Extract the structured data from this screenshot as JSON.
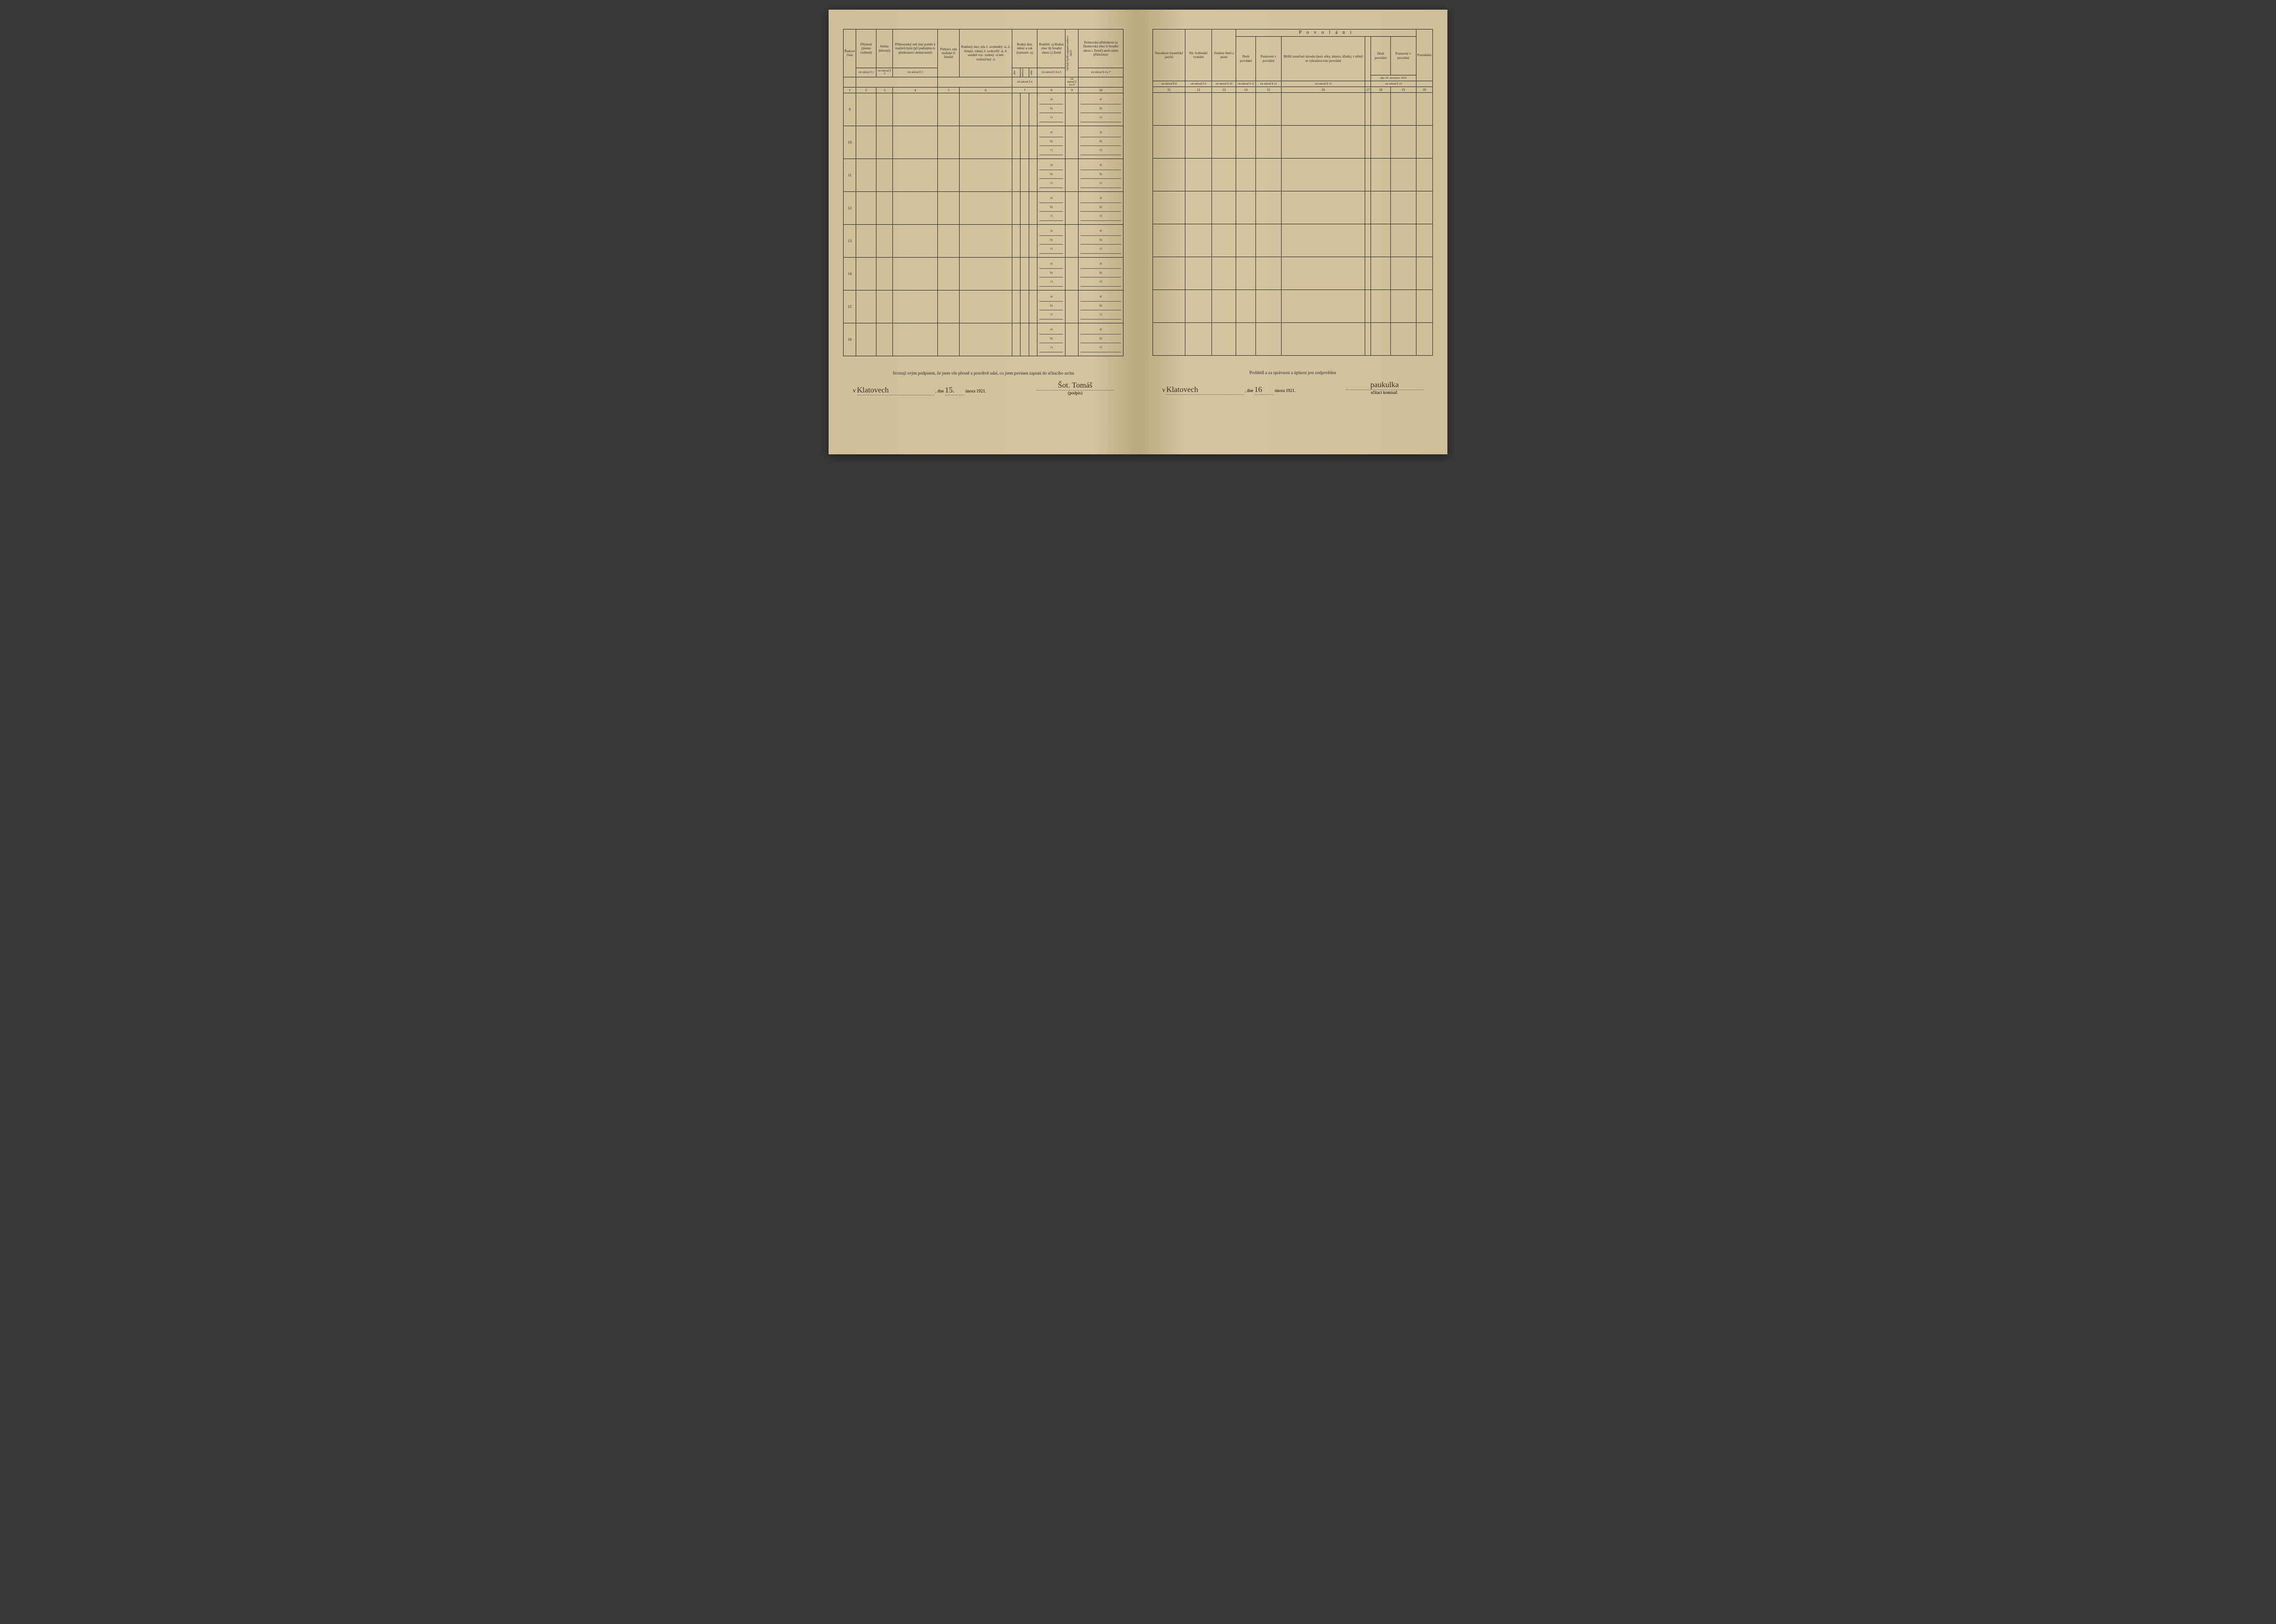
{
  "columns_left": {
    "c1": {
      "header": "Řadové\nčíslo",
      "ref": "",
      "num": "1"
    },
    "c2": {
      "header": "Příjmení\n(jméno rodinné)",
      "ref": "viz návod § 1",
      "num": "2"
    },
    "c3": {
      "header": "Jméno\n(křestní)",
      "ref": "viz návod § 2",
      "num": "3"
    },
    "c4": {
      "header": "Příbuzenský\nneb jiný poměr\nk majiteli bytu\n(při podnájmu\nk přednostovi\ndomácnosti)",
      "ref": "viz návod § 3",
      "num": "4"
    },
    "c5": {
      "header": "Pohlaví,\nzda\nmužské\nči\nženské",
      "ref": "",
      "num": "5"
    },
    "c6": {
      "header": "Rodinný\nstav, zda\n1. svobodný -á,\n2. ženatý, vdaná\n3. ovdovělý -á,\n4. soudně roz-\nvedený -á neb\nrozloučený -á",
      "ref": "",
      "num": "6"
    },
    "c7": {
      "header": "Rodný den,\nměsíc a rok\n(narozen -a)",
      "sub": [
        "dne",
        "měsíce",
        "roku"
      ],
      "ref": "viz návod § 4",
      "num": "7"
    },
    "c8": {
      "header": "Rodiště:\na) Rodná obec\nb) Soudní okres\nc) Země",
      "ref": "viz návod § 4 a 5",
      "num": "8"
    },
    "c9": {
      "header": "Od kdy bydlí zapsaná\nosoba v obci?",
      "ref": "viz\nnávod\n§ 4 a 6",
      "num": "9"
    },
    "c10": {
      "header": "Domovská\npříslušnost\n(a Domovská obec\nb Soudní okres\nc Země)\naneb\nstátní\npříslušnost",
      "ref": "viz návod § 4 a 7",
      "num": "10"
    }
  },
  "columns_right": {
    "povolani_title": "P o v o l á n í",
    "c11": {
      "header": "Národnost\n(mateřský\njazyk)",
      "ref": "viz návod § 8",
      "num": "11"
    },
    "c12": {
      "header": "Ná-\nboženské\nvyznání",
      "ref": "viz návod § 9",
      "num": "12"
    },
    "c13": {
      "header": "Znalost\nčtení\na psaní",
      "ref": "viz návod § 10",
      "num": "13"
    },
    "c14": {
      "header": "Druh povolání",
      "ref": "viz návod § 11",
      "num": "14"
    },
    "c15": {
      "header": "Postavení\nv povolání",
      "ref": "viz návod § 12",
      "num": "15"
    },
    "c16": {
      "header": "Bližší označení\nzávodu (pod-\nniku, ústavu,\núřadu), v němž\nse vykonává\ntoto povolání",
      "ref": "viz návod § 13",
      "num": "16"
    },
    "c17": {
      "header": "",
      "num": "17"
    },
    "c18": {
      "header": "Druh povolání",
      "num": "18",
      "sub": "dne 16. července 1914",
      "ref": "viz návod § 14"
    },
    "c19": {
      "header": "Postavení\nv povolání",
      "num": "19"
    },
    "c20": {
      "header": "Poznámka",
      "ref": "",
      "num": "20"
    }
  },
  "row_numbers": [
    "9",
    "10",
    "11",
    "12",
    "13",
    "14",
    "15",
    "16"
  ],
  "cell_prefixes": [
    "a)",
    "b)",
    "c)"
  ],
  "left_affirmation": "Stvrzuji svým podpisem, že jsem vše přesně a pravdivě udal, co jsem povinen zapsati do sčítacího archu",
  "left_sig": {
    "v_label": "V",
    "place_hand": "Klatovech",
    "day_hand": "15.",
    "dne": ", dne",
    "month_year": "února 1921.",
    "sig_hand": "Šot. Tomáš",
    "podpis": "(podpis)"
  },
  "right_affirmation": "Prohlédl a za správnost a úplnost jest zodpověden",
  "right_sig": {
    "v_label": "V",
    "place_hand": "Klatovech",
    "dne": ", dne",
    "day_hand": "16",
    "month_year": "února 1921.",
    "sig_hand": "paukulka",
    "komissar": "sčítací komisař."
  },
  "colors": {
    "paper": "#d4c5a0",
    "ink": "#2a2a2a",
    "hand_ink": "#3a3020"
  }
}
